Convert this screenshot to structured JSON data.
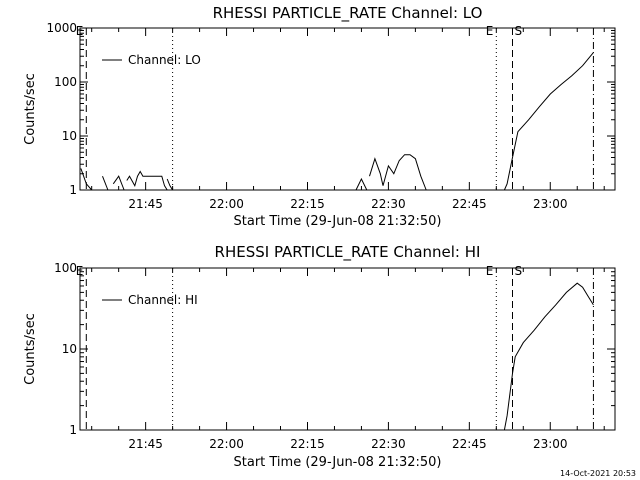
{
  "footer": {
    "timestamp": "14-Oct-2021 20:53"
  },
  "chart_data": [
    {
      "type": "line",
      "title": "RHESSI PARTICLE_RATE Channel: LO",
      "xlabel": "Start Time (29-Jun-08 21:32:50)",
      "ylabel": "Counts/sec",
      "y_scale": "log",
      "xlim_minutes": [
        21.5,
        23.2
      ],
      "ylim": [
        1,
        1000
      ],
      "x_tick_labels": [
        "21:45",
        "22:00",
        "22:15",
        "22:30",
        "22:45",
        "23:00"
      ],
      "y_tick_labels": [
        "1",
        "10",
        "100",
        "1000"
      ],
      "legend": {
        "placement": "top-left",
        "label": "Channel: LO"
      },
      "markers": [
        {
          "label": "E",
          "style": "dashed",
          "time": "21:34"
        },
        {
          "label": "",
          "style": "dotted",
          "time": "21:50"
        },
        {
          "label": "E",
          "style": "dotted",
          "time": "22:50"
        },
        {
          "label": "S",
          "style": "dashed",
          "time": "22:53"
        },
        {
          "label": "",
          "style": "dashdot",
          "time": "23:08"
        }
      ],
      "series": [
        {
          "name": "Channel: LO",
          "segments": [
            [
              [
                "21:33",
                2.5
              ],
              [
                "21:34",
                1.3
              ],
              [
                "21:35",
                1
              ]
            ],
            [
              [
                "21:37",
                1.8
              ],
              [
                "21:38",
                1
              ]
            ],
            [
              [
                "21:39",
                1.3
              ],
              [
                "21:40",
                1.8
              ],
              [
                "21:41",
                1
              ]
            ],
            [
              [
                "21:41.5",
                1.5
              ],
              [
                "21:42",
                1.8
              ],
              [
                "21:43",
                1.2
              ],
              [
                "21:43.5",
                1.8
              ],
              [
                "21:44",
                2.2
              ],
              [
                "21:44.5",
                1.8
              ],
              [
                "21:46",
                1.8
              ],
              [
                "21:47",
                1.8
              ],
              [
                "21:48",
                1.8
              ],
              [
                "21:48.5",
                1.2
              ],
              [
                "21:49",
                1
              ]
            ],
            [
              [
                "21:49",
                1.6
              ],
              [
                "21:49.5",
                1.2
              ],
              [
                "21:50",
                1
              ]
            ],
            [
              [
                "22:24",
                1
              ],
              [
                "22:25",
                1.6
              ],
              [
                "22:26",
                1
              ]
            ],
            [
              [
                "22:26.5",
                1.8
              ],
              [
                "22:27.5",
                3.8
              ],
              [
                "22:28.5",
                2
              ],
              [
                "22:29",
                1.2
              ],
              [
                "22:30",
                2.8
              ],
              [
                "22:31",
                2
              ],
              [
                "22:32",
                3.5
              ],
              [
                "22:33",
                4.5
              ],
              [
                "22:34",
                4.5
              ],
              [
                "22:35",
                3.8
              ],
              [
                "22:36",
                1.8
              ],
              [
                "22:37",
                1
              ]
            ],
            [
              [
                "22:51.5",
                1
              ],
              [
                "22:52",
                1.3
              ],
              [
                "22:53",
                4
              ],
              [
                "22:54",
                12
              ],
              [
                "22:56",
                20
              ],
              [
                "22:58",
                35
              ],
              [
                "23:00",
                60
              ],
              [
                "23:02",
                90
              ],
              [
                "23:04",
                130
              ],
              [
                "23:06",
                200
              ],
              [
                "23:08",
                350
              ]
            ]
          ]
        }
      ]
    },
    {
      "type": "line",
      "title": "RHESSI PARTICLE_RATE Channel: HI",
      "xlabel": "Start Time (29-Jun-08 21:32:50)",
      "ylabel": "Counts/sec",
      "y_scale": "log",
      "ylim": [
        1,
        100
      ],
      "x_tick_labels": [
        "21:45",
        "22:00",
        "22:15",
        "22:30",
        "22:45",
        "23:00"
      ],
      "y_tick_labels": [
        "1",
        "10",
        "100"
      ],
      "legend": {
        "placement": "top-left",
        "label": "Channel: HI"
      },
      "markers": [
        {
          "label": "E",
          "style": "dashed",
          "time": "21:34"
        },
        {
          "label": "",
          "style": "dotted",
          "time": "21:50"
        },
        {
          "label": "E",
          "style": "dotted",
          "time": "22:50"
        },
        {
          "label": "S",
          "style": "dashed",
          "time": "22:53"
        },
        {
          "label": "",
          "style": "dashdot",
          "time": "23:08"
        }
      ],
      "series": [
        {
          "name": "Channel: HI",
          "segments": [
            [
              [
                "22:51.5",
                1
              ],
              [
                "22:52",
                1.5
              ],
              [
                "22:53",
                5
              ],
              [
                "22:53.5",
                8
              ],
              [
                "22:55",
                12
              ],
              [
                "22:57",
                17
              ],
              [
                "22:59",
                25
              ],
              [
                "23:01",
                35
              ],
              [
                "23:03",
                50
              ],
              [
                "23:05",
                65
              ],
              [
                "23:06",
                58
              ],
              [
                "23:07",
                45
              ],
              [
                "23:08",
                35
              ]
            ]
          ]
        }
      ]
    }
  ]
}
